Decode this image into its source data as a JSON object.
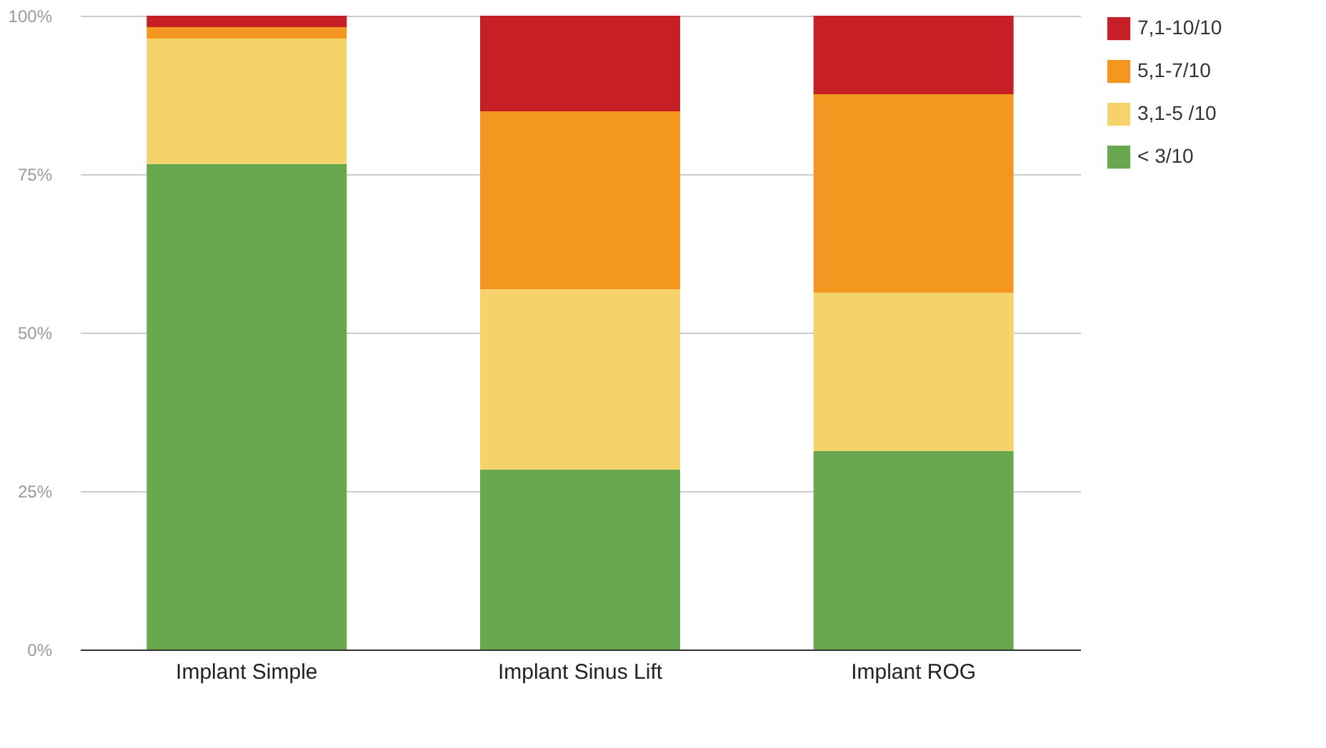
{
  "chart_data": {
    "type": "bar",
    "stacked": true,
    "categories": [
      "Implant Simple",
      "Implant Sinus Lift",
      "Implant ROG"
    ],
    "series": [
      {
        "name": "< 3/10",
        "color": "#6aa84f",
        "values": [
          76.6,
          28.4,
          31.3
        ]
      },
      {
        "name": "3,1-5 /10",
        "color": "#f6d26b",
        "values": [
          19.8,
          28.4,
          25.0
        ]
      },
      {
        "name": "5,1-7/10",
        "color": "#f39720",
        "values": [
          1.8,
          28.1,
          31.3
        ]
      },
      {
        "name": "7,1-10/10",
        "color": "#c62026",
        "values": [
          1.8,
          15.1,
          12.4
        ]
      }
    ],
    "ylim": [
      0,
      100
    ],
    "yticks": [
      {
        "value": 0,
        "label": "0%"
      },
      {
        "value": 25,
        "label": "25%"
      },
      {
        "value": 50,
        "label": "50%"
      },
      {
        "value": 75,
        "label": "75%"
      },
      {
        "value": 100,
        "label": "100%"
      }
    ],
    "grid": "y",
    "legend": "top right"
  }
}
